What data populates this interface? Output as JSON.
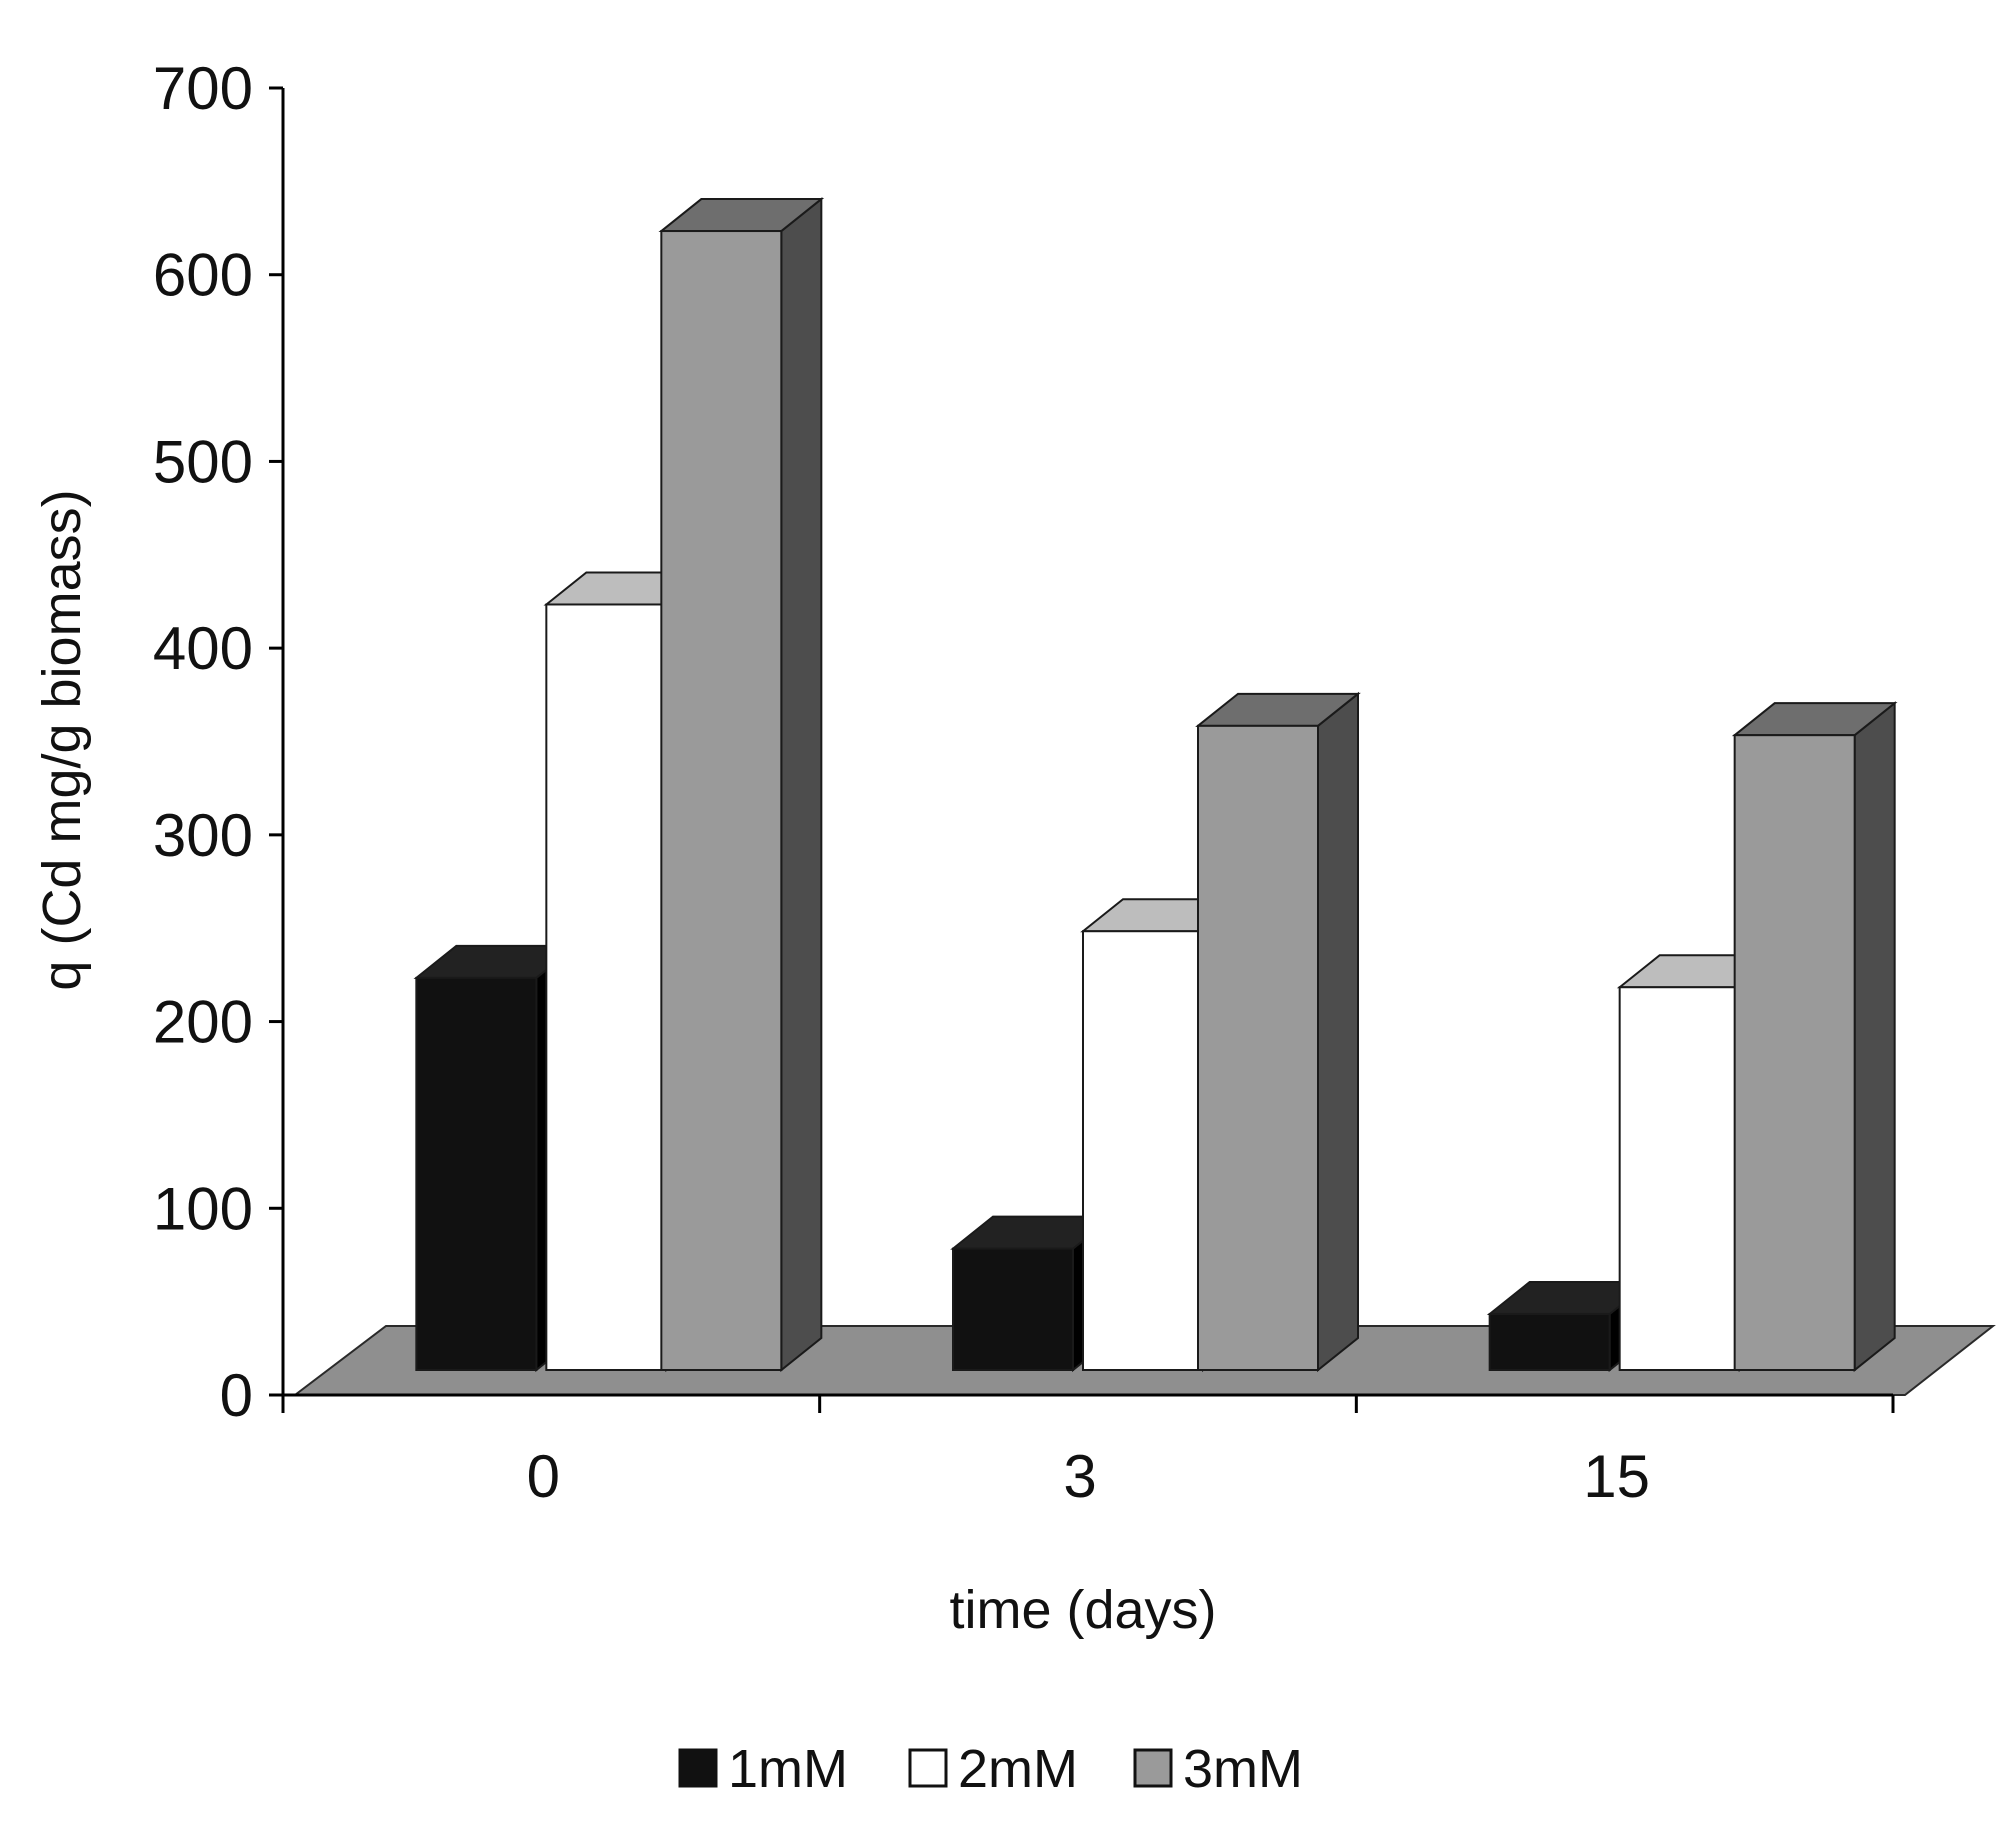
{
  "chart_data": {
    "type": "bar",
    "style": "3d-clustered",
    "categories": [
      "0",
      "3",
      "15"
    ],
    "xlabel": "time (days)",
    "ylabel": "q (Cd mg/g biomass)",
    "ylim": [
      0,
      700
    ],
    "yticks": [
      "0",
      "100",
      "200",
      "300",
      "400",
      "500",
      "600",
      "700"
    ],
    "grid": false,
    "legend_position": "bottom",
    "series": [
      {
        "name": "1mM",
        "values": [
          210,
          65,
          30
        ],
        "color": "#111111",
        "side_color": "#000000",
        "top_color": "#222222"
      },
      {
        "name": "2mM",
        "values": [
          410,
          235,
          205
        ],
        "color": "#ffffff",
        "side_color": "#e6e6e6",
        "top_color": "#bdbdbd"
      },
      {
        "name": "3mM",
        "values": [
          610,
          345,
          340
        ],
        "color": "#9a9a9a",
        "side_color": "#4d4d4d",
        "top_color": "#6e6e6e"
      }
    ],
    "floor_color": "#8f8f8f"
  }
}
